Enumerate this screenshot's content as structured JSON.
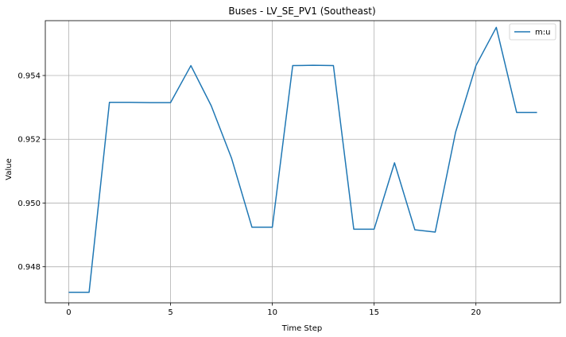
{
  "chart_data": {
    "type": "line",
    "title": "Buses - LV_SE_PV1 (Southeast)",
    "xlabel": "Time Step",
    "ylabel": "Value",
    "xlim": [
      -1.15,
      24.15
    ],
    "ylim": [
      0.94687,
      0.95572
    ],
    "x_ticks": [
      0,
      5,
      10,
      15,
      20
    ],
    "x_tick_labels": [
      "0",
      "5",
      "10",
      "15",
      "20"
    ],
    "y_ticks": [
      0.948,
      0.95,
      0.952,
      0.954
    ],
    "y_tick_labels": [
      "0.948",
      "0.950",
      "0.952",
      "0.954"
    ],
    "grid": true,
    "legend_position": "top-right",
    "series": [
      {
        "name": "m:u",
        "color": "#1f77b4",
        "x": [
          0,
          1,
          2,
          3,
          4,
          5,
          6,
          7,
          8,
          9,
          10,
          11,
          12,
          13,
          14,
          15,
          16,
          17,
          18,
          19,
          20,
          21,
          22,
          23
        ],
        "values": [
          0.9472,
          0.9472,
          0.95316,
          0.95316,
          0.95315,
          0.95315,
          0.95431,
          0.95305,
          0.9514,
          0.94924,
          0.94924,
          0.95431,
          0.95432,
          0.95431,
          0.94918,
          0.94918,
          0.95126,
          0.94916,
          0.94909,
          0.95222,
          0.95431,
          0.95551,
          0.95284,
          0.95284
        ]
      }
    ]
  }
}
